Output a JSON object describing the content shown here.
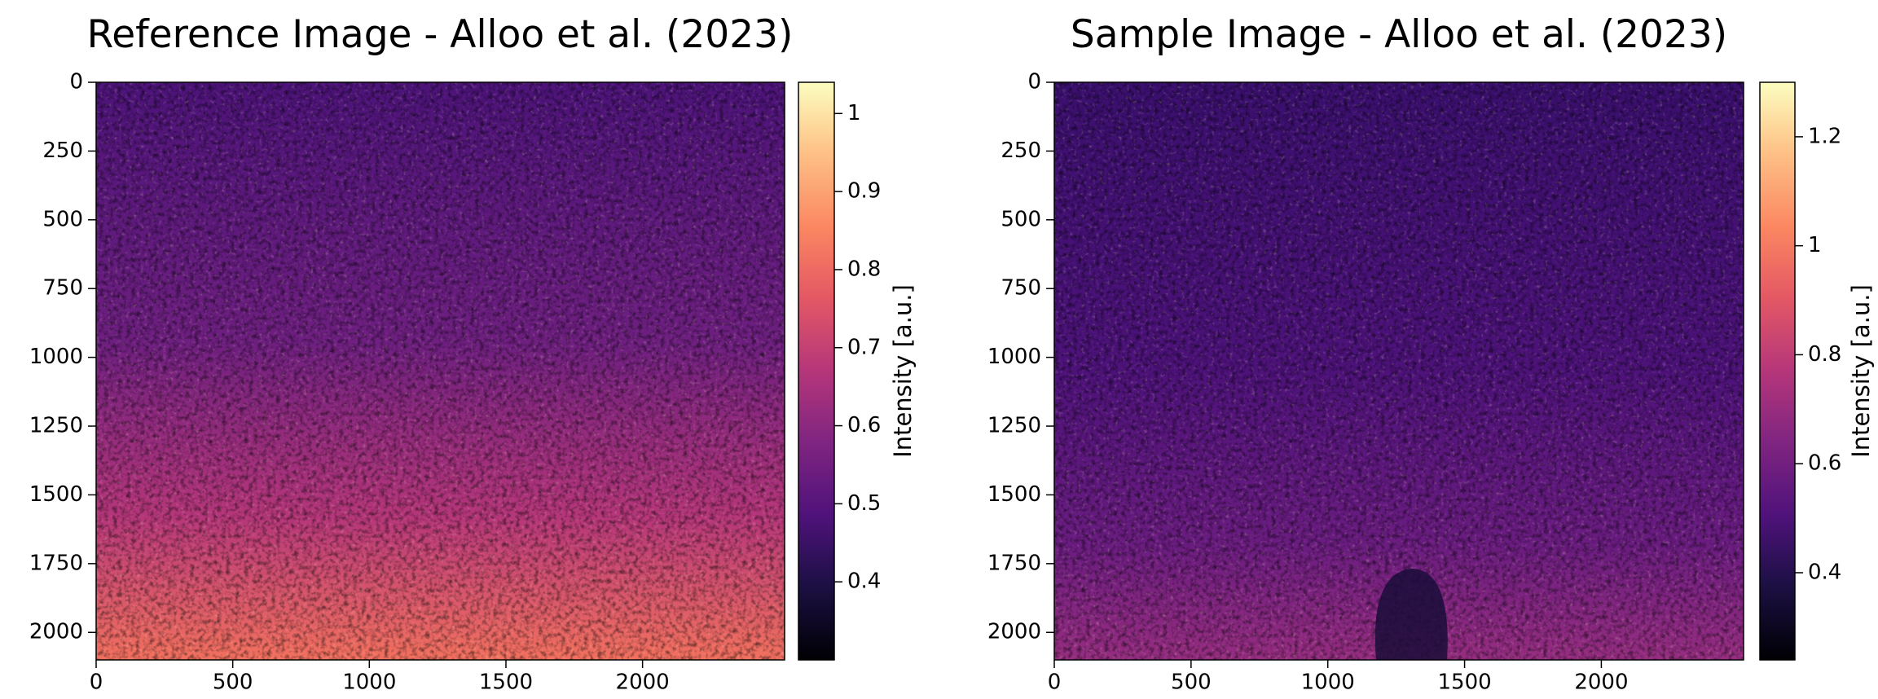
{
  "chart_data": [
    {
      "type": "image",
      "title": "Reference Image - Alloo et al. (2023)",
      "xlim": [
        0,
        2520
      ],
      "xticks": [
        0,
        500,
        1000,
        1500,
        2000
      ],
      "ylim": [
        2100,
        0
      ],
      "yticks": [
        0,
        250,
        500,
        750,
        1000,
        1250,
        1500,
        1750,
        2000
      ],
      "colormap": "magma",
      "clim": [
        0.3,
        1.04
      ],
      "cticks": [
        0.4,
        0.5,
        0.6,
        0.7,
        0.8,
        0.9,
        1.0
      ],
      "colorbar_label": "Intensity [a.u.]"
    },
    {
      "type": "image",
      "title": "Sample Image - Alloo et al. (2023)",
      "xlim": [
        0,
        2520
      ],
      "xticks": [
        0,
        500,
        1000,
        1500,
        2000
      ],
      "ylim": [
        2100,
        0
      ],
      "yticks": [
        0,
        250,
        500,
        750,
        1000,
        1250,
        1500,
        1750,
        2000
      ],
      "colormap": "magma",
      "clim": [
        0.24,
        1.3
      ],
      "cticks": [
        0.4,
        0.6,
        0.8,
        1.0,
        1.2
      ],
      "colorbar_label": "Intensity [a.u.]"
    }
  ]
}
